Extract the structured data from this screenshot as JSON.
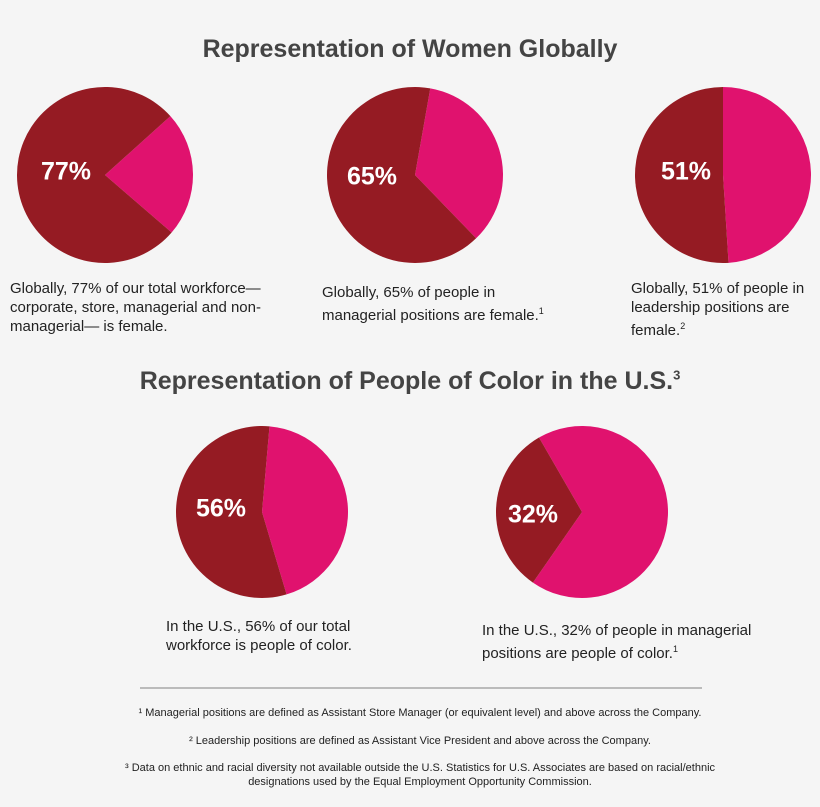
{
  "sections": [
    {
      "title": "Representation of Women Globally"
    },
    {
      "title": "Representation of People of Color in the U.S.",
      "note": "3"
    }
  ],
  "chart_data": [
    {
      "type": "pie",
      "values": [
        77,
        23
      ],
      "value_labels": [
        "77%",
        null
      ],
      "colors": [
        "#951b23",
        "#e0126e"
      ],
      "caption": "Globally, 77% of our total workforce— corporate, store, managerial and non-managerial— is female."
    },
    {
      "type": "pie",
      "values": [
        65,
        35
      ],
      "value_labels": [
        "65%",
        null
      ],
      "colors": [
        "#951b23",
        "#e0126e"
      ],
      "caption": "Globally, 65% of people in managerial positions are female.",
      "note": "1"
    },
    {
      "type": "pie",
      "values": [
        51,
        49
      ],
      "value_labels": [
        "51%",
        null
      ],
      "colors": [
        "#951b23",
        "#e0126e"
      ],
      "caption": "Globally, 51% of people in leadership positions are female.",
      "note": "2"
    },
    {
      "type": "pie",
      "values": [
        56,
        44
      ],
      "value_labels": [
        "56%",
        null
      ],
      "colors": [
        "#951b23",
        "#e0126e"
      ],
      "caption": "In the U.S., 56% of our total workforce is people of color."
    },
    {
      "type": "pie",
      "values": [
        32,
        68
      ],
      "value_labels": [
        "32%",
        null
      ],
      "colors": [
        "#951b23",
        "#e0126e"
      ],
      "caption": "In the U.S., 32% of people in managerial positions are people of color.",
      "note": "1"
    }
  ],
  "footnotes": [
    "¹ Managerial positions are defined as Assistant Store Manager (or equivalent level) and above across the Company.",
    "² Leadership positions are defined as Assistant Vice President and above across the Company.",
    "³ Data on ethnic and racial diversity not available outside the U.S. Statistics for U.S. Associates are based on racial/ethnic designations used by the Equal Employment Opportunity Commission."
  ]
}
